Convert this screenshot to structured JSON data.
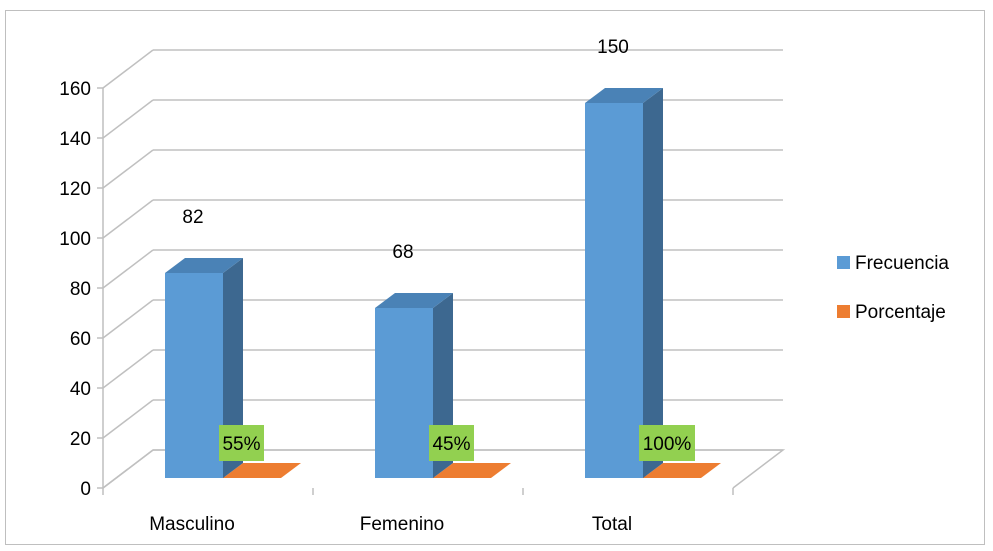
{
  "chart_data": {
    "type": "bar",
    "categories": [
      "Masculino",
      "Femenino",
      "Total"
    ],
    "series": [
      {
        "name": "Frecuencia",
        "values": [
          82,
          68,
          150
        ],
        "labels": [
          "82",
          "68",
          "150"
        ],
        "color": "#5b9bd5",
        "side_color": "#3d6890",
        "top_color": "#4a82b6"
      },
      {
        "name": "Porcentaje",
        "values": [
          0.55,
          0.45,
          1.0
        ],
        "labels": [
          "55%",
          "45%",
          "100%"
        ],
        "color": "#ed7d31",
        "label_background": "#92d050"
      }
    ],
    "yticks": [
      "0",
      "20",
      "40",
      "60",
      "80",
      "100",
      "120",
      "140",
      "160"
    ],
    "ylim": [
      0,
      160
    ],
    "grid": true,
    "legend_position": "right",
    "style": "3d-clustered-column"
  }
}
